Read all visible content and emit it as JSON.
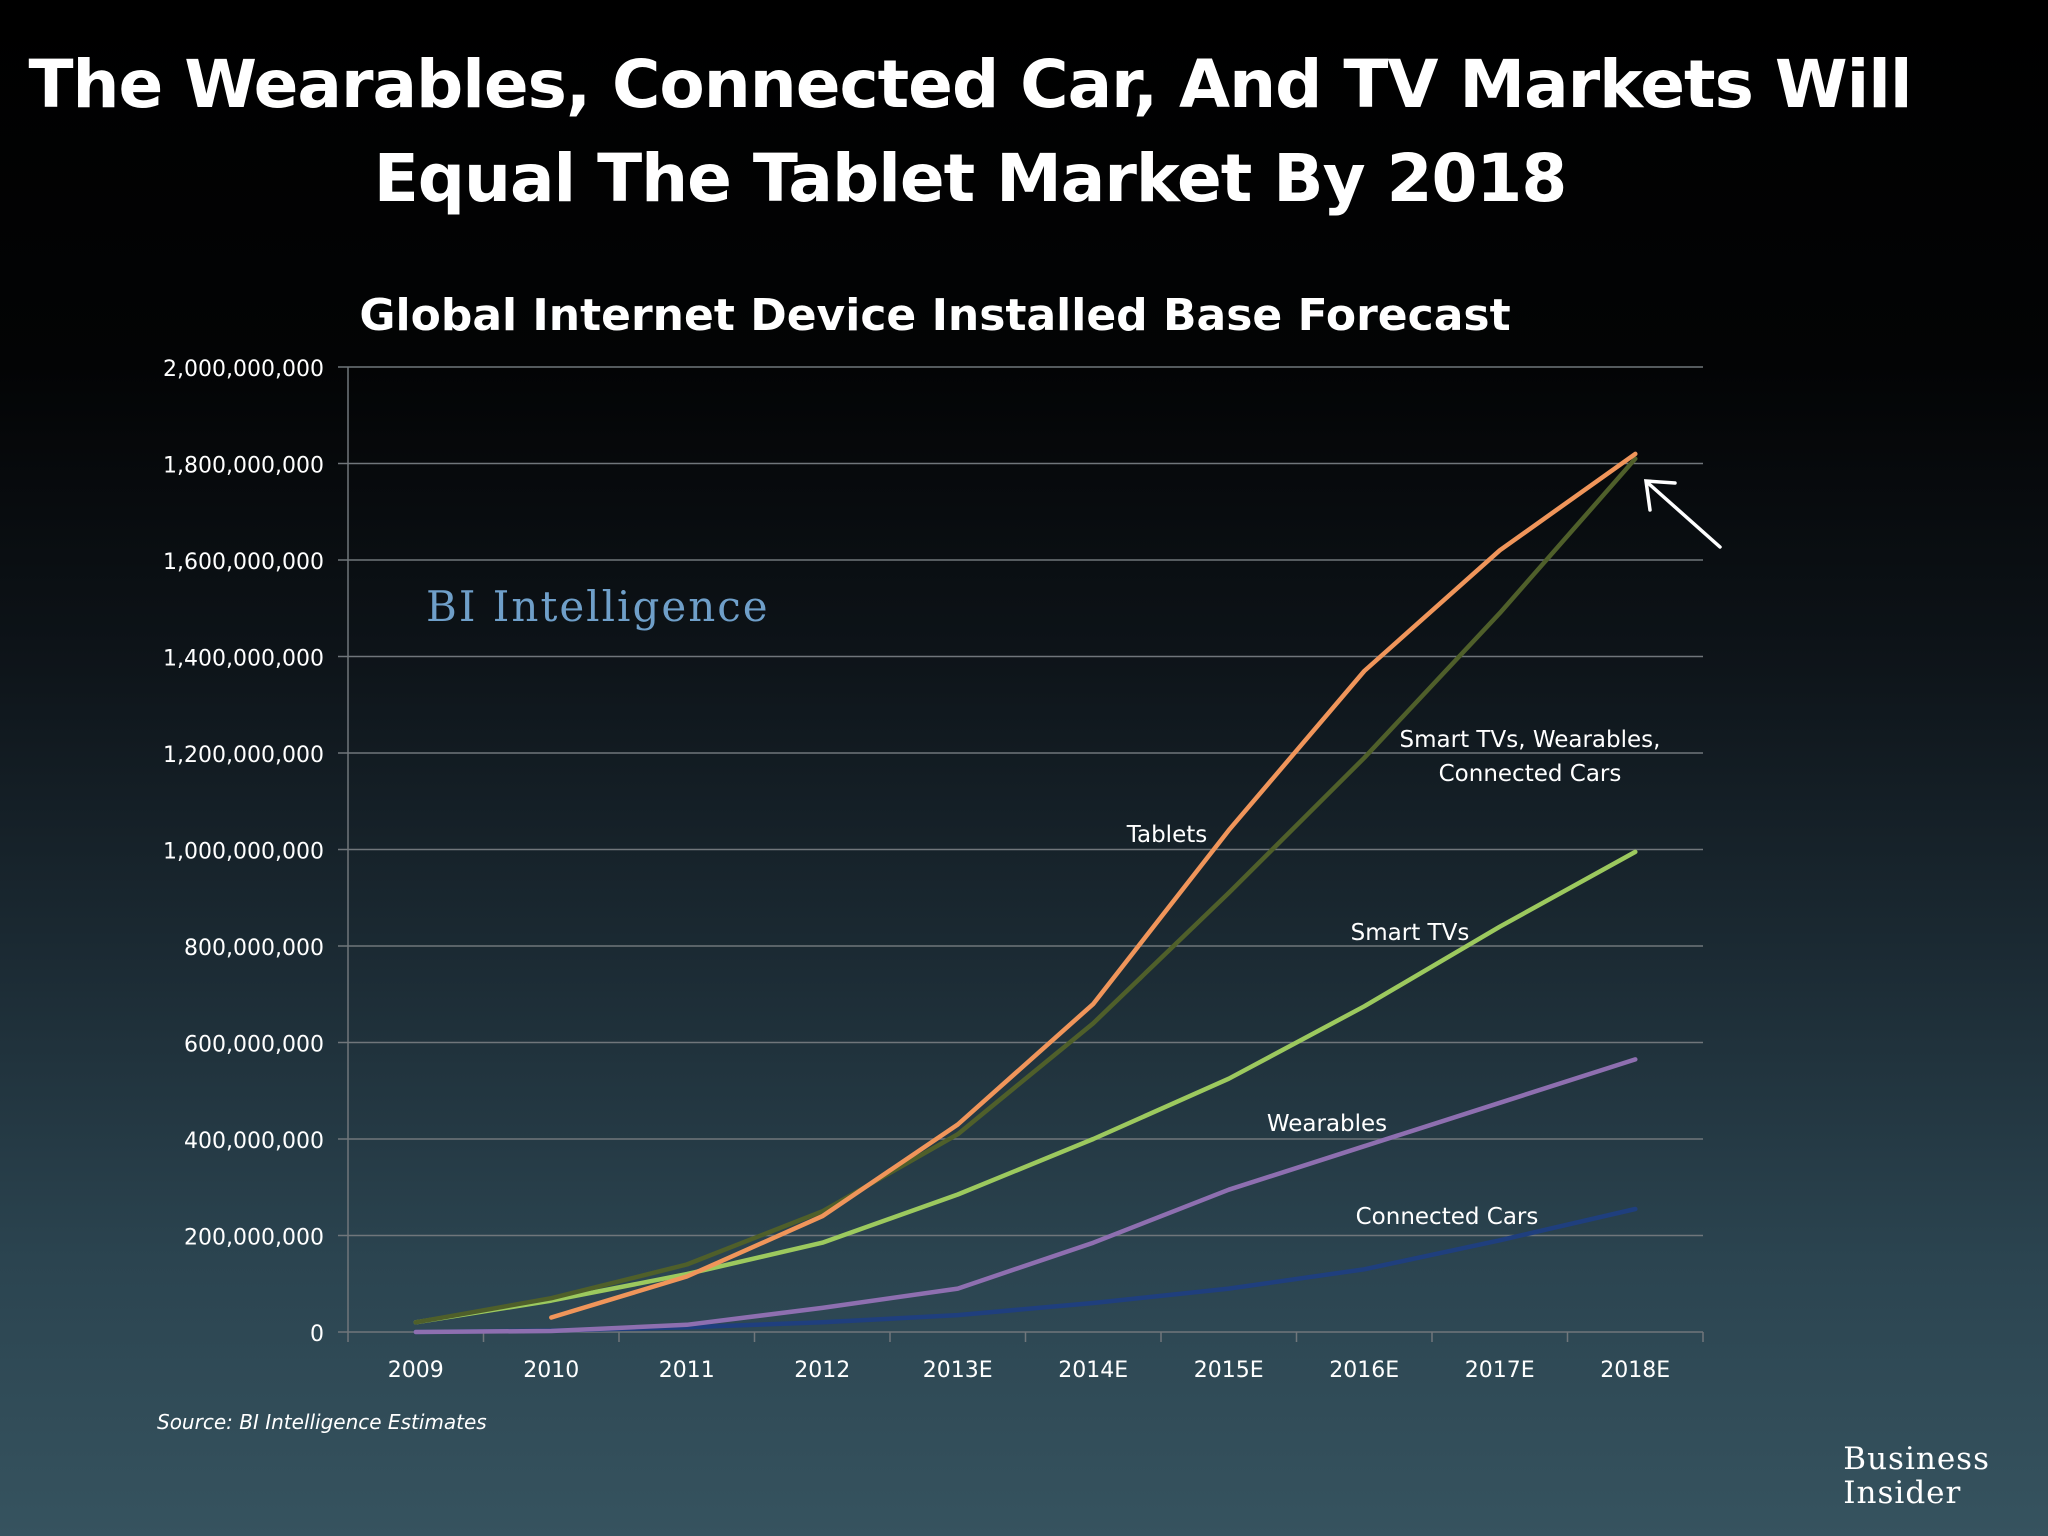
{
  "slide": {
    "title_line1": "The Wearables, Connected Car, And TV Markets Will",
    "title_line2": "Equal The Tablet Market By 2018",
    "source": "Source: BI Intelligence Estimates",
    "watermark": "BI Intelligence",
    "brand_line1": "Business",
    "brand_line2": "Insider"
  },
  "colors": {
    "tablets": "#f0955a",
    "combined": "#4f5f2a",
    "smart_tvs": "#9cc95e",
    "wearables": "#8e6fb0",
    "connected_cars": "#1f3f7e",
    "gridline": "#70767b",
    "axis_text": "#ffffff"
  },
  "chart_data": {
    "type": "line",
    "title": "Global Internet Device Installed Base Forecast",
    "xlabel": "",
    "ylabel": "",
    "categories": [
      "2009",
      "2010",
      "2011",
      "2012",
      "2013E",
      "2014E",
      "2015E",
      "2016E",
      "2017E",
      "2018E"
    ],
    "ylim": [
      0,
      2000000000
    ],
    "yticks": [
      0,
      200000000,
      400000000,
      600000000,
      800000000,
      1000000000,
      1200000000,
      1400000000,
      1600000000,
      1800000000,
      2000000000
    ],
    "ytick_labels": [
      "0",
      "200,000,000",
      "400,000,000",
      "600,000,000",
      "800,000,000",
      "1,000,000,000",
      "1,200,000,000",
      "1,400,000,000",
      "1,600,000,000",
      "1,800,000,000",
      "2,000,000,000"
    ],
    "grid": true,
    "series": [
      {
        "name": "Tablets",
        "color_key": "tablets",
        "label": "Tablets",
        "values": [
          null,
          30000000,
          115000000,
          240000000,
          430000000,
          680000000,
          1040000000,
          1370000000,
          1620000000,
          1820000000
        ]
      },
      {
        "name": "Smart TVs, Wearables, Connected Cars",
        "color_key": "combined",
        "label_line1": "Smart TVs, Wearables,",
        "label_line2": "Connected Cars",
        "values": [
          20000000,
          70000000,
          140000000,
          250000000,
          410000000,
          640000000,
          910000000,
          1190000000,
          1490000000,
          1810000000
        ]
      },
      {
        "name": "Smart TVs",
        "color_key": "smart_tvs",
        "label": "Smart TVs",
        "values": [
          20000000,
          65000000,
          120000000,
          185000000,
          285000000,
          400000000,
          525000000,
          675000000,
          840000000,
          995000000
        ]
      },
      {
        "name": "Wearables",
        "color_key": "wearables",
        "label": "Wearables",
        "values": [
          0,
          2000000,
          15000000,
          50000000,
          90000000,
          185000000,
          295000000,
          385000000,
          475000000,
          565000000
        ]
      },
      {
        "name": "Connected Cars",
        "color_key": "connected_cars",
        "label": "Connected Cars",
        "values": [
          0,
          3000000,
          10000000,
          20000000,
          35000000,
          60000000,
          90000000,
          130000000,
          190000000,
          255000000
        ]
      }
    ],
    "annotation": "arrow pointing at 2018E convergence of Tablets and combined series"
  }
}
